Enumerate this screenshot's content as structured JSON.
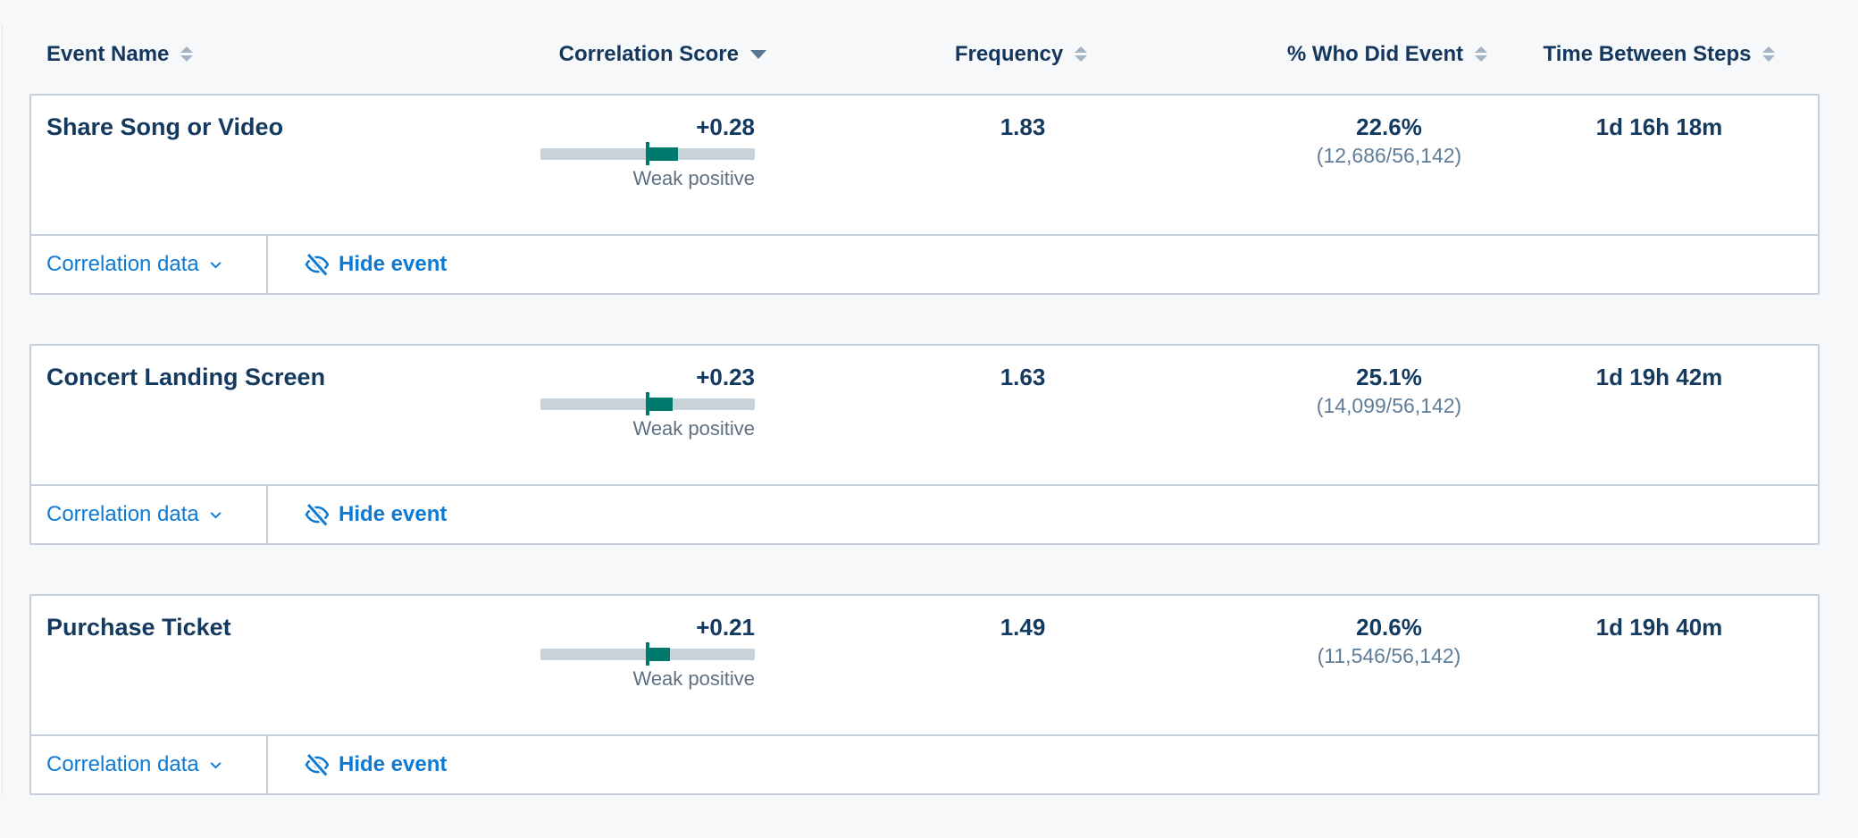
{
  "colors": {
    "page_background": "#f7f8f9",
    "card_border": "#c7d0d9",
    "primary_navy": "#153a60",
    "link_blue": "#0e7ad3",
    "correlation_teal": "#00796d",
    "bar_track_gray": "#c9d2d9",
    "strength_label_slate": "#5d7183",
    "fraction_slate": "#5f7d98",
    "sort_icon_gray": "#a3b3c3",
    "sort_icon_active": "#5a7590"
  },
  "header": {
    "columns": [
      {
        "label": "Event Name",
        "sort": "unsorted"
      },
      {
        "label": "Correlation Score",
        "sort": "desc"
      },
      {
        "label": "Frequency",
        "sort": "unsorted"
      },
      {
        "label": "% Who Did Event",
        "sort": "unsorted"
      },
      {
        "label": "Time Between Steps",
        "sort": "unsorted"
      }
    ]
  },
  "row_actions": {
    "correlation_data_label": "Correlation data",
    "hide_event_label": "Hide event"
  },
  "rows": [
    {
      "event_name": "Share Song or Video",
      "correlation": {
        "display": "+0.28",
        "score": 0.28,
        "strength": "Weak positive"
      },
      "frequency": "1.83",
      "pct_who_did": "22.6%",
      "pct_fraction": "(12,686/56,142)",
      "time_between_steps": "1d 16h 18m"
    },
    {
      "event_name": "Concert Landing Screen",
      "correlation": {
        "display": "+0.23",
        "score": 0.23,
        "strength": "Weak positive"
      },
      "frequency": "1.63",
      "pct_who_did": "25.1%",
      "pct_fraction": "(14,099/56,142)",
      "time_between_steps": "1d 19h 42m"
    },
    {
      "event_name": "Purchase Ticket",
      "correlation": {
        "display": "+0.21",
        "score": 0.21,
        "strength": "Weak positive"
      },
      "frequency": "1.49",
      "pct_who_did": "20.6%",
      "pct_fraction": "(11,546/56,142)",
      "time_between_steps": "1d 19h 40m"
    }
  ]
}
